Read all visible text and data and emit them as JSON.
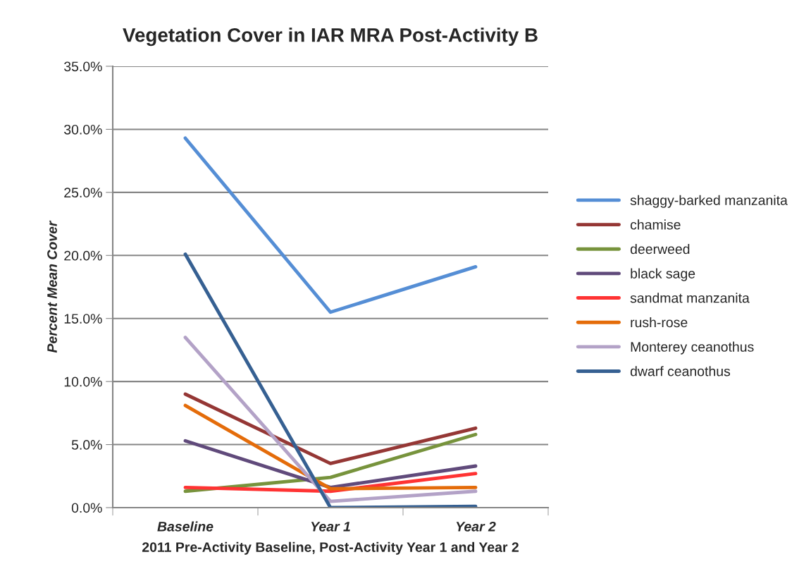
{
  "chart_data": {
    "type": "line",
    "title": "Vegetation Cover in IAR MRA Post-Activity B",
    "xlabel": "2011 Pre-Activity Baseline, Post-Activity Year 1 and Year 2",
    "ylabel": "Percent Mean Cover",
    "categories": [
      "Baseline",
      "Year 1",
      "Year 2"
    ],
    "series": [
      {
        "name": "shaggy-barked manzanita",
        "color": "#558ed5",
        "values": [
          29.3,
          15.5,
          19.1
        ]
      },
      {
        "name": "chamise",
        "color": "#953735",
        "values": [
          9.0,
          3.5,
          6.3
        ]
      },
      {
        "name": "deerweed",
        "color": "#77933c",
        "values": [
          1.3,
          2.4,
          5.8
        ]
      },
      {
        "name": "black sage",
        "color": "#604a7b",
        "values": [
          5.3,
          1.6,
          3.3
        ]
      },
      {
        "name": "sandmat manzanita",
        "color": "#ff3333",
        "values": [
          1.6,
          1.3,
          2.7
        ]
      },
      {
        "name": "rush-rose",
        "color": "#e46c0a",
        "values": [
          8.1,
          1.5,
          1.6
        ]
      },
      {
        "name": "Monterey ceanothus",
        "color": "#b3a2c7",
        "values": [
          13.5,
          0.5,
          1.3
        ]
      },
      {
        "name": "dwarf ceanothus",
        "color": "#366092",
        "values": [
          20.1,
          0.0,
          0.1
        ]
      }
    ],
    "ylim": [
      0,
      35
    ],
    "yticks": [
      {
        "value": 0,
        "label": "0.0%"
      },
      {
        "value": 5,
        "label": "5.0%"
      },
      {
        "value": 10,
        "label": "10.0%"
      },
      {
        "value": 15,
        "label": "15.0%"
      },
      {
        "value": 20,
        "label": "20.0%"
      },
      {
        "value": 25,
        "label": "25.0%"
      },
      {
        "value": 30,
        "label": "30.0%"
      },
      {
        "value": 35,
        "label": "35.0%"
      }
    ],
    "grid": "y",
    "legend": "right",
    "marker": "none",
    "line_style": "solid"
  }
}
